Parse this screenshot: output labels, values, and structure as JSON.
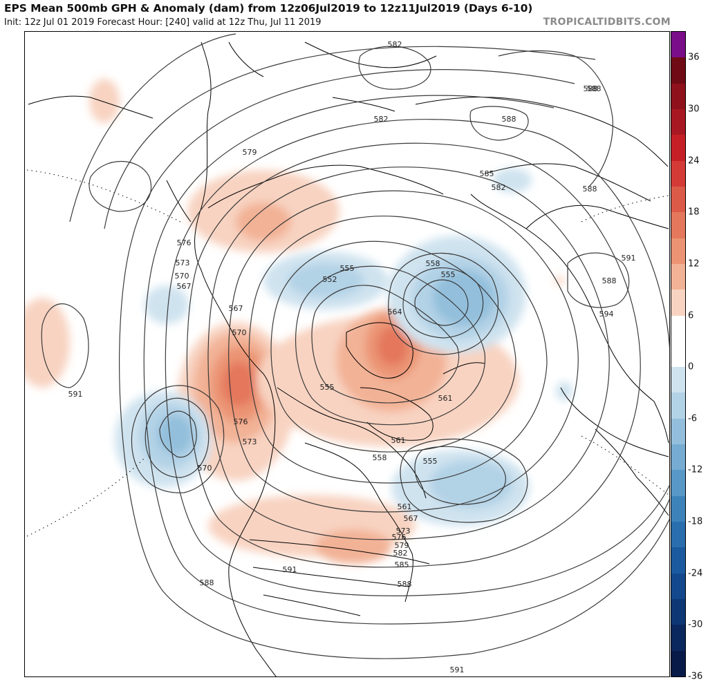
{
  "header": {
    "title": "EPS Mean 500mb GPH & Anomaly (dam) from 12z06Jul2019 to 12z11Jul2019 (Days 6-10)",
    "subtitle": "Init: 12z Jul 01 2019   Forecast Hour: [240]   valid at 12z Thu, Jul 11 2019",
    "brand": "TROPICALTIDBITS.COM"
  },
  "colorbar": {
    "tick_labels": [
      "36",
      "30",
      "24",
      "18",
      "12",
      "6",
      "0",
      "-6",
      "-12",
      "-18",
      "-24",
      "-30",
      "-36"
    ],
    "colors": [
      "#7a0d88",
      "#6e0b14",
      "#8e111c",
      "#a81822",
      "#c62026",
      "#d43b36",
      "#dc5a48",
      "#e4775c",
      "#eb9474",
      "#f2b296",
      "#f8d3c1",
      "#ffffff",
      "#ffffff",
      "#cfe3ef",
      "#b2d2e6",
      "#93bfdc",
      "#76acd2",
      "#5898c6",
      "#3d83ba",
      "#2a6eae",
      "#1c5aa0",
      "#13488c",
      "#0d3775",
      "#0a275e",
      "#081a48"
    ]
  },
  "contour_labels": [
    "582",
    "588",
    "588",
    "582",
    "579",
    "585",
    "582",
    "588",
    "588",
    "591",
    "576",
    "573",
    "570",
    "567",
    "555",
    "552",
    "558",
    "555",
    "594",
    "567",
    "564",
    "570",
    "591",
    "555",
    "561",
    "576",
    "573",
    "570",
    "561",
    "558",
    "555",
    "561",
    "567",
    "573",
    "576",
    "579",
    "582",
    "585",
    "588",
    "591",
    "588",
    "591",
    "588"
  ]
}
